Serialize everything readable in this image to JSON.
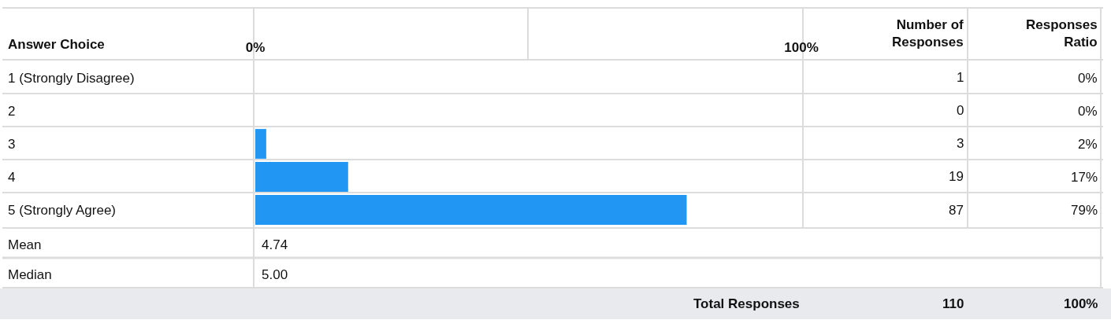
{
  "chart_data": {
    "type": "bar",
    "orientation": "horizontal",
    "ylabel": "Answer Choice",
    "categories": [
      "1 (Strongly Disagree)",
      "2",
      "3",
      "4",
      "5 (Strongly Agree)"
    ],
    "values": [
      0,
      0,
      2,
      17,
      79
    ],
    "value_labels": [
      "0%",
      "0%",
      "2%",
      "17%",
      "79%"
    ],
    "color": "#2196f3",
    "grid": true,
    "xlim": [
      0,
      100
    ],
    "xticks": [
      {
        "value": 0,
        "label": "0%"
      },
      {
        "value": 100,
        "label": "100%"
      }
    ],
    "annotations": [
      "Number of Responses",
      "Responses Ratio",
      "1",
      "0",
      "3",
      "19",
      "87",
      "Mean",
      "4.74",
      "Median",
      "5.00",
      "Total Responses",
      "110",
      "100%"
    ]
  }
}
